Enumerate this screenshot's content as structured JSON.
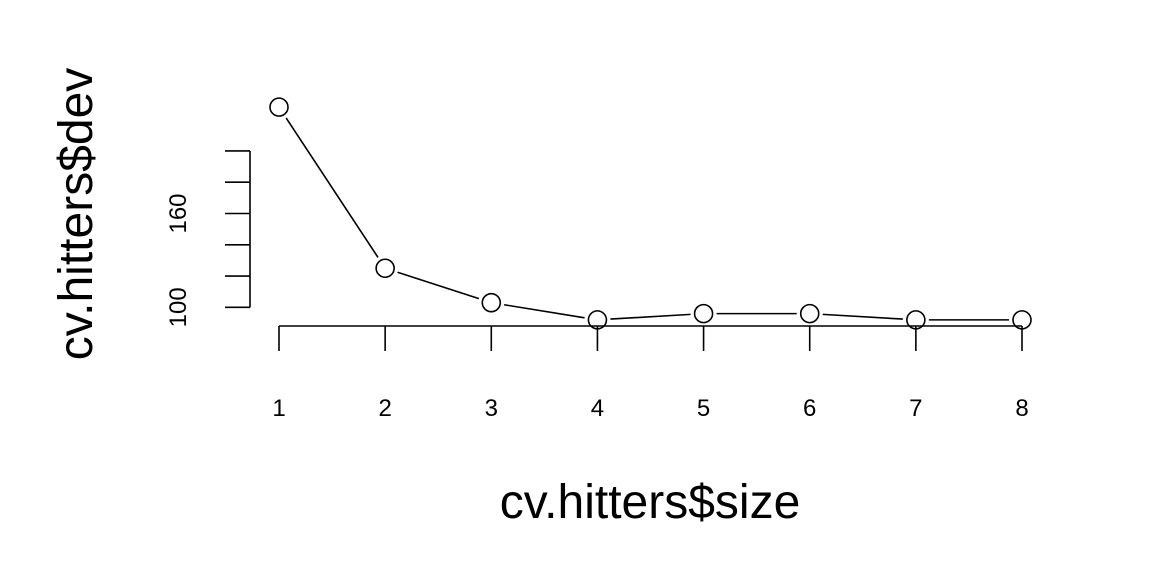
{
  "chart_data": {
    "type": "line",
    "title": "",
    "xlabel": "cv.hitters$size",
    "ylabel": "cv.hitters$dev",
    "x": [
      1,
      2,
      3,
      4,
      5,
      6,
      7,
      8
    ],
    "series": [
      {
        "values": [
          228,
          125,
          103,
          92,
          96,
          96,
          92,
          92
        ]
      }
    ],
    "xlim": [
      1,
      8
    ],
    "ylim": [
      90,
      230
    ],
    "x_ticks": [
      "1",
      "2",
      "3",
      "4",
      "5",
      "6",
      "7",
      "8"
    ],
    "y_tick_values": [
      100,
      120,
      140,
      160,
      180,
      200
    ],
    "y_tick_labels": [
      "100",
      "",
      "",
      "160",
      "",
      ""
    ],
    "markers": "open-circle",
    "grid": false,
    "legend": "none"
  }
}
